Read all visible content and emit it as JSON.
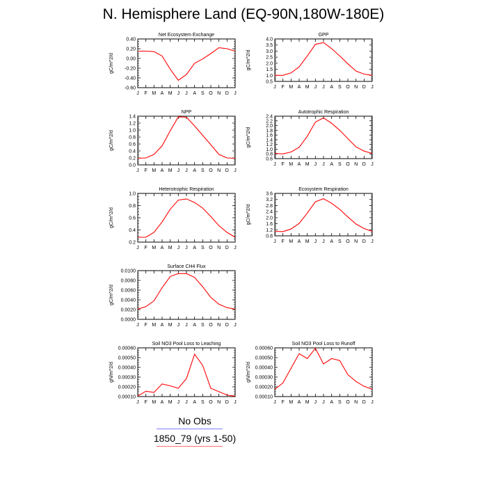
{
  "title": "N. Hemisphere Land (EQ-90N,180W-180E)",
  "legend": [
    {
      "label": "No Obs",
      "color": "#7f7fff"
    },
    {
      "label": "1850_79 (yrs 1-50)",
      "color": "#ff6f6f"
    }
  ],
  "chart_data": [
    {
      "type": "line",
      "title": "Net Ecosystem Exchange",
      "ylabel": "gC/m^2/d",
      "x": [
        "J",
        "F",
        "M",
        "A",
        "M",
        "J",
        "J",
        "A",
        "S",
        "O",
        "N",
        "D",
        "J"
      ],
      "ylim": [
        -0.6,
        0.4
      ],
      "yticks": [
        "0.40",
        "0.20",
        "0.00",
        "-0.20",
        "-0.40",
        "-0.60"
      ],
      "series": [
        {
          "color": "#ff0000",
          "values": [
            0.15,
            0.15,
            0.14,
            0.05,
            -0.22,
            -0.45,
            -0.33,
            -0.1,
            -0.01,
            0.1,
            0.22,
            0.2,
            0.15
          ]
        }
      ]
    },
    {
      "type": "line",
      "title": "GPP",
      "ylabel": "gC/m^2/d",
      "x": [
        "J",
        "F",
        "M",
        "A",
        "M",
        "J",
        "J",
        "A",
        "S",
        "O",
        "N",
        "D",
        "J"
      ],
      "ylim": [
        0.5,
        4.0
      ],
      "yticks": [
        "4.0",
        "3.5",
        "3.0",
        "2.5",
        "2.0",
        "1.5",
        "1.0",
        "0.5"
      ],
      "series": [
        {
          "color": "#ff0000",
          "values": [
            1.0,
            1.0,
            1.2,
            1.7,
            2.6,
            3.55,
            3.7,
            3.2,
            2.6,
            1.95,
            1.35,
            1.1,
            1.0
          ]
        }
      ]
    },
    {
      "type": "line",
      "title": "NPP",
      "ylabel": "gC/m^2/d",
      "x": [
        "J",
        "F",
        "M",
        "A",
        "M",
        "J",
        "J",
        "A",
        "S",
        "O",
        "N",
        "D",
        "J"
      ],
      "ylim": [
        0.0,
        1.4
      ],
      "yticks": [
        "1.4",
        "1.2",
        "1.0",
        "0.8",
        "0.6",
        "0.4",
        "0.2",
        "0.0"
      ],
      "series": [
        {
          "color": "#ff0000",
          "values": [
            0.19,
            0.2,
            0.3,
            0.55,
            0.98,
            1.38,
            1.37,
            1.12,
            0.85,
            0.58,
            0.3,
            0.2,
            0.19
          ]
        }
      ]
    },
    {
      "type": "line",
      "title": "Autotrophic Respiration",
      "ylabel": "gC/m^2/d",
      "x": [
        "J",
        "F",
        "M",
        "A",
        "M",
        "J",
        "J",
        "A",
        "S",
        "O",
        "N",
        "D",
        "J"
      ],
      "ylim": [
        0.6,
        2.4
      ],
      "yticks": [
        "2.4",
        "2.2",
        "2.0",
        "1.8",
        "1.6",
        "1.4",
        "1.2",
        "1.0",
        "0.8",
        "0.6"
      ],
      "series": [
        {
          "color": "#ff0000",
          "values": [
            0.82,
            0.8,
            0.88,
            1.08,
            1.55,
            2.15,
            2.33,
            2.1,
            1.8,
            1.45,
            1.1,
            0.92,
            0.82
          ]
        }
      ]
    },
    {
      "type": "line",
      "title": "Heterotrophic Respiration",
      "ylabel": "gC/m^2/d",
      "x": [
        "J",
        "F",
        "M",
        "A",
        "M",
        "J",
        "J",
        "A",
        "S",
        "O",
        "N",
        "D",
        "J"
      ],
      "ylim": [
        0.2,
        1.0
      ],
      "yticks": [
        "1.0",
        "0.8",
        "0.6",
        "0.4",
        "0.2"
      ],
      "series": [
        {
          "color": "#ff0000",
          "values": [
            0.28,
            0.28,
            0.36,
            0.53,
            0.74,
            0.89,
            0.91,
            0.85,
            0.76,
            0.62,
            0.47,
            0.36,
            0.28
          ]
        }
      ]
    },
    {
      "type": "line",
      "title": "Ecosystem Respiration",
      "ylabel": "gC/m^2/d",
      "x": [
        "J",
        "F",
        "M",
        "A",
        "M",
        "J",
        "J",
        "A",
        "S",
        "O",
        "N",
        "D",
        "J"
      ],
      "ylim": [
        0.8,
        3.6
      ],
      "yticks": [
        "3.6",
        "3.2",
        "2.8",
        "2.4",
        "2.0",
        "1.6",
        "1.2",
        "0.8"
      ],
      "series": [
        {
          "color": "#ff0000",
          "values": [
            1.1,
            1.08,
            1.25,
            1.62,
            2.3,
            3.05,
            3.25,
            2.95,
            2.55,
            2.05,
            1.58,
            1.28,
            1.1
          ]
        }
      ]
    },
    {
      "type": "line",
      "title": "Surface CH4 Flux",
      "ylabel": "gC/m^2/d",
      "x": [
        "J",
        "F",
        "M",
        "A",
        "M",
        "J",
        "J",
        "A",
        "S",
        "O",
        "N",
        "D",
        "J"
      ],
      "ylim": [
        0.0,
        0.01
      ],
      "yticks": [
        "0.0100",
        "0.0080",
        "0.0060",
        "0.0040",
        "0.0020",
        "0.0000"
      ],
      "series": [
        {
          "color": "#ff0000",
          "values": [
            0.0021,
            0.0026,
            0.0038,
            0.0065,
            0.0088,
            0.0094,
            0.0094,
            0.0086,
            0.0067,
            0.0045,
            0.0031,
            0.0024,
            0.0021
          ]
        }
      ]
    },
    {
      "type": "line",
      "title": "Soil NO3 Pool Loss to Leaching",
      "ylabel": "gN/m^2/d",
      "x": [
        "J",
        "F",
        "M",
        "A",
        "M",
        "J",
        "J",
        "A",
        "S",
        "O",
        "N",
        "D",
        "J"
      ],
      "ylim": [
        0.0001,
        0.0006
      ],
      "yticks": [
        "0.00060",
        "0.00050",
        "0.00040",
        "0.00030",
        "0.00020",
        "0.00010"
      ],
      "series": [
        {
          "color": "#ff0000",
          "values": [
            0.000105,
            0.000155,
            0.000143,
            0.00023,
            0.00021,
            0.000185,
            0.000285,
            0.000535,
            0.00042,
            0.000185,
            0.00015,
            0.000115,
            0.000105
          ]
        }
      ]
    },
    {
      "type": "line",
      "title": "Soil NO3 Pool Loss to Runoff",
      "ylabel": "gN/m^2/d",
      "x": [
        "J",
        "F",
        "M",
        "A",
        "M",
        "J",
        "J",
        "A",
        "S",
        "O",
        "N",
        "D",
        "J"
      ],
      "ylim": [
        0.0001,
        0.0006
      ],
      "yticks": [
        "0.00060",
        "0.00050",
        "0.00040",
        "0.00030",
        "0.00020",
        "0.00010"
      ],
      "series": [
        {
          "color": "#ff0000",
          "values": [
            0.000175,
            0.00024,
            0.00039,
            0.00054,
            0.00049,
            0.000595,
            0.000435,
            0.00049,
            0.00047,
            0.000325,
            0.000255,
            0.000205,
            0.000175
          ]
        }
      ]
    }
  ]
}
